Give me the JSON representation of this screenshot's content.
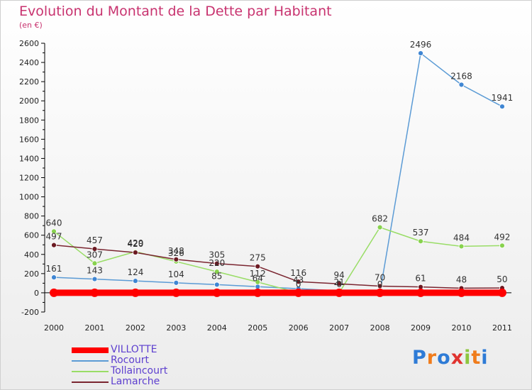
{
  "title": "Evolution du Montant de la Dette par Habitant",
  "subtitle": "(en €)",
  "logo": {
    "text": "Proxiti",
    "colors": [
      "#2e7bd6",
      "#f07c1c",
      "#2e7bd6",
      "#e0332f",
      "#8dc63f",
      "#f07c1c",
      "#2e7bd6"
    ]
  },
  "chart_data": {
    "type": "line",
    "title": "Evolution du Montant de la Dette par Habitant",
    "subtitle": "(en €)",
    "xlabel": "",
    "ylabel": "",
    "x": [
      "2000",
      "2001",
      "2002",
      "2003",
      "2004",
      "2005",
      "2006",
      "2007",
      "2008",
      "2009",
      "2010",
      "2011"
    ],
    "ylim": [
      -200,
      2600
    ],
    "yticks": [
      "-200",
      "0",
      "200",
      "400",
      "600",
      "800",
      "1000",
      "1200",
      "1400",
      "1600",
      "1800",
      "2000",
      "2200",
      "2400",
      "2600"
    ],
    "grid": false,
    "legend": "bottom-left",
    "series": [
      {
        "name": "VILLOTTE",
        "color": "#ff0000",
        "marker_color": "#ff0000",
        "values": [
          0,
          0,
          0,
          0,
          0,
          0,
          0,
          0,
          0,
          0,
          0,
          0
        ],
        "labels": [
          "",
          "",
          "",
          "",
          "",
          "",
          "",
          "",
          "",
          "",
          "",
          ""
        ]
      },
      {
        "name": "Rocourt",
        "color": "#5b9bd5",
        "marker_color": "#3f86d3",
        "values": [
          161,
          143,
          124,
          104,
          85,
          64,
          43,
          21,
          0,
          2496,
          2168,
          1941
        ],
        "labels": [
          "161",
          "143",
          "124",
          "104",
          "85",
          "64",
          "43",
          "21",
          "0",
          "2496",
          "2168",
          "1941"
        ]
      },
      {
        "name": "Tollaincourt",
        "color": "#99dd66",
        "marker_color": "#88d24e",
        "values": [
          640,
          307,
          429,
          326,
          220,
          112,
          0,
          0,
          682,
          537,
          484,
          492
        ],
        "labels": [
          "640",
          "307",
          "429",
          "326",
          "220",
          "112",
          "0",
          "0",
          "682",
          "537",
          "484",
          "492"
        ]
      },
      {
        "name": "Lamarche",
        "color": "#7a2530",
        "marker_color": "#6b1a22",
        "values": [
          497,
          457,
          420,
          348,
          305,
          275,
          116,
          94,
          70,
          61,
          48,
          50
        ],
        "labels": [
          "497",
          "457",
          "420",
          "348",
          "305",
          "275",
          "116",
          "94",
          "70",
          "61",
          "48",
          "50"
        ]
      }
    ],
    "secondary_zero_labels": {
      "VILLOTTE": [
        "0",
        "0",
        "0",
        "0",
        "0",
        "0",
        "0",
        "0",
        "0",
        "0",
        "0",
        "0"
      ]
    }
  }
}
